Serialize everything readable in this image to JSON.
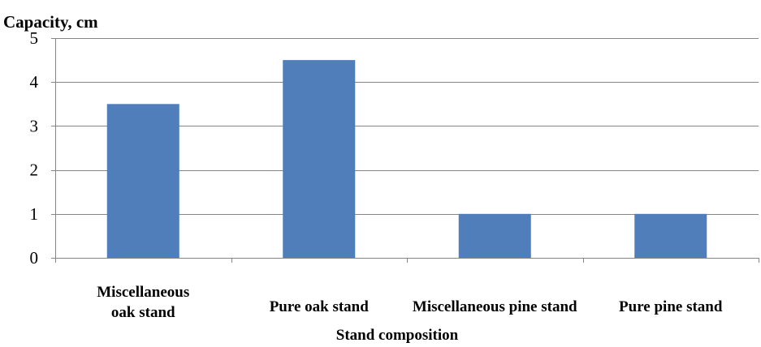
{
  "chart_data": {
    "type": "bar",
    "title": "",
    "ylabel": "Capacity, cm",
    "xlabel": "Stand composition",
    "categories": [
      [
        "Miscellaneous",
        "oak stand"
      ],
      [
        "Pure oak stand"
      ],
      [
        "Miscellaneous pine stand"
      ],
      [
        "Pure pine stand"
      ]
    ],
    "values": [
      3.5,
      4.5,
      1,
      1
    ],
    "ylim": [
      0,
      5
    ],
    "yticks": [
      0,
      1,
      2,
      3,
      4,
      5
    ],
    "grid": true,
    "legend": "none",
    "colors": {
      "bar": "#4F7EBA",
      "grid": "#868686",
      "axis": "#868686"
    }
  }
}
